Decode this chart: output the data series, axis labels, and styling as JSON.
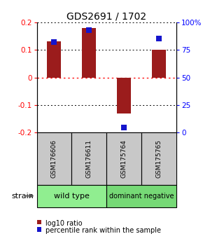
{
  "title": "GDS2691 / 1702",
  "samples": [
    "GSM176606",
    "GSM176611",
    "GSM175764",
    "GSM175765"
  ],
  "log10_ratio": [
    0.13,
    0.18,
    -0.13,
    0.1
  ],
  "percentile_rank": [
    82,
    93,
    5,
    85
  ],
  "groups": [
    {
      "label": "wild type",
      "color": "#90EE90",
      "start": 0,
      "end": 2
    },
    {
      "label": "dominant negative",
      "color": "#76d976",
      "start": 2,
      "end": 4
    }
  ],
  "ylim": [
    -0.2,
    0.2
  ],
  "yticks_left": [
    -0.2,
    -0.1,
    0,
    0.1,
    0.2
  ],
  "yticks_right": [
    0,
    25,
    50,
    75,
    100
  ],
  "bar_color": "#9B1C1C",
  "dot_color": "#1515CC",
  "bar_width": 0.4,
  "dot_size": 35,
  "title_fontsize": 10,
  "tick_fontsize": 7.5,
  "sample_fontsize": 6.5,
  "group_fontsize": 8,
  "strain_label": "strain",
  "legend_items": [
    {
      "label": "log10 ratio",
      "color": "#9B1C1C"
    },
    {
      "label": "percentile rank within the sample",
      "color": "#1515CC"
    }
  ]
}
